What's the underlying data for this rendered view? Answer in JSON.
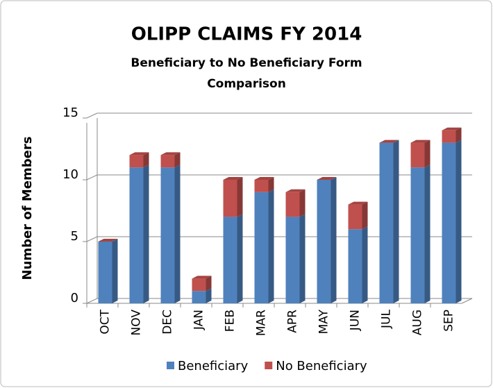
{
  "chart_data": {
    "type": "bar",
    "stacked": true,
    "three_d": true,
    "title": "OLIPP CLAIMS FY 2014",
    "subtitle": "Beneficiary to No Beneficiary Form Comparison",
    "y_label": "Number of Members",
    "categories": [
      "OCT",
      "NOV",
      "DEC",
      "JAN",
      "FEB",
      "MAR",
      "APR",
      "MAY",
      "JUN",
      "JUL",
      "AUG",
      "SEP"
    ],
    "series": [
      {
        "name": "Beneficiary",
        "color": "#4f81bd",
        "values": [
          5,
          11,
          11,
          1,
          7,
          9,
          7,
          10,
          6,
          13,
          11,
          13
        ]
      },
      {
        "name": "No Beneficiary",
        "color": "#c0504d",
        "values": [
          0,
          1,
          1,
          1,
          3,
          1,
          2,
          0,
          2,
          0,
          2,
          1
        ]
      }
    ],
    "ylim": [
      0,
      15
    ],
    "yticks": [
      0,
      5,
      10,
      15
    ],
    "grid": true,
    "legend": "bottom"
  }
}
